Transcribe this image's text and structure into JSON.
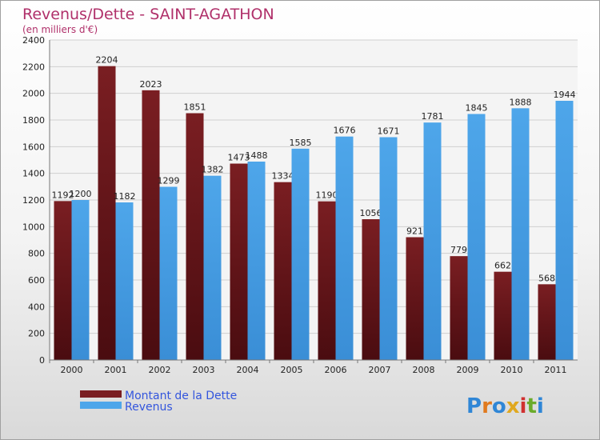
{
  "chart_data": {
    "type": "bar",
    "title": "Revenus/Dette - SAINT-AGATHON",
    "subtitle": "(en milliers d'€)",
    "categories": [
      "2000",
      "2001",
      "2002",
      "2003",
      "2004",
      "2005",
      "2006",
      "2007",
      "2008",
      "2009",
      "2010",
      "2011"
    ],
    "series": [
      {
        "name": "Montant de la Dette",
        "color": "#7a1e22",
        "values": [
          1192,
          2204,
          2023,
          1851,
          1473,
          1334,
          1190,
          1056,
          921,
          779,
          662,
          568
        ]
      },
      {
        "name": "Revenus",
        "color": "#4ea6ea",
        "values": [
          1200,
          1182,
          1299,
          1382,
          1488,
          1585,
          1676,
          1671,
          1781,
          1845,
          1888,
          1944
        ]
      }
    ],
    "ylim": [
      0,
      2400
    ],
    "yticks": [
      0,
      200,
      400,
      600,
      800,
      1000,
      1200,
      1400,
      1600,
      1800,
      2000,
      2200,
      2400
    ],
    "grid": true,
    "legend_position": "bottom-left"
  },
  "logo": {
    "letters": [
      "P",
      "r",
      "o",
      "x",
      "i",
      "t",
      "i"
    ],
    "colors": [
      "#2f86d6",
      "#e07a1f",
      "#2f86d6",
      "#e0a81f",
      "#d03030",
      "#6aab2a",
      "#2f86d6"
    ]
  }
}
